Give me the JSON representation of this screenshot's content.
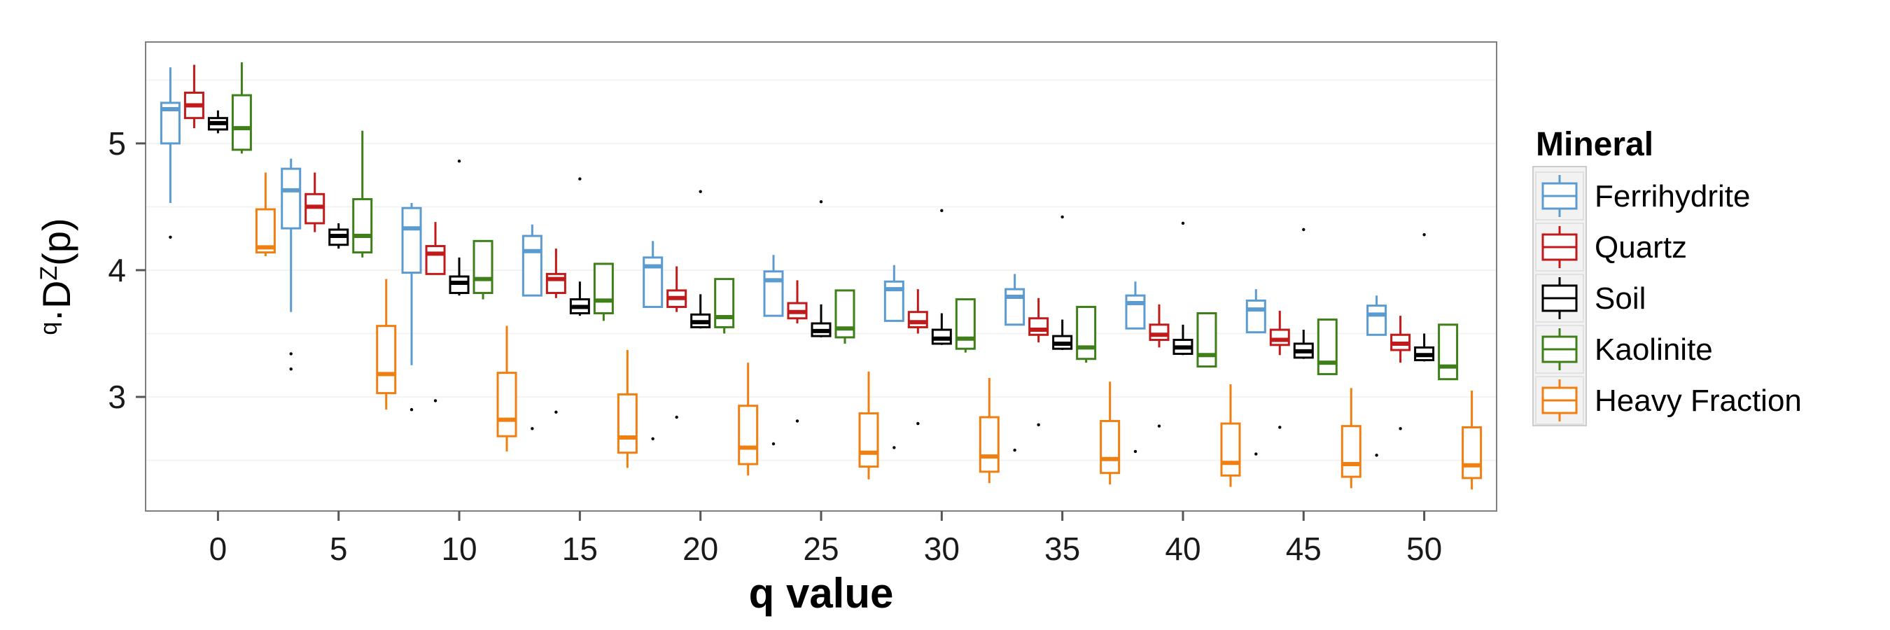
{
  "chart_data": {
    "type": "boxplot",
    "xlabel": "q value",
    "ylabel_parts": {
      "pre_sup": "q",
      "pre": "·D",
      "sup": "Z",
      "post": "(p)"
    },
    "x_ticks": [
      0,
      5,
      10,
      15,
      20,
      25,
      30,
      35,
      40,
      45,
      50
    ],
    "y_ticks": [
      3,
      4,
      5
    ],
    "ylim": [
      2.1,
      5.8
    ],
    "grid": true,
    "legend": {
      "title": "Mineral",
      "position": "right"
    },
    "series": [
      {
        "name": "Ferrihydrite",
        "color": "#5b9bd0",
        "boxes": [
          {
            "q": 0,
            "whisker_low": 4.53,
            "q1": 5.0,
            "median": 5.27,
            "q3": 5.32,
            "whisker_high": 5.6,
            "outliers": [
              4.26
            ]
          },
          {
            "q": 5,
            "whisker_low": 3.67,
            "q1": 4.33,
            "median": 4.63,
            "q3": 4.8,
            "whisker_high": 4.88,
            "outliers": [
              3.34,
              3.22
            ]
          },
          {
            "q": 10,
            "whisker_low": 3.25,
            "q1": 3.98,
            "median": 4.33,
            "q3": 4.49,
            "whisker_high": 4.53,
            "outliers": [
              2.9
            ]
          },
          {
            "q": 15,
            "whisker_low": 3.8,
            "q1": 3.8,
            "median": 4.15,
            "q3": 4.27,
            "whisker_high": 4.36,
            "outliers": [
              2.75
            ]
          },
          {
            "q": 20,
            "whisker_low": 3.71,
            "q1": 3.71,
            "median": 4.03,
            "q3": 4.1,
            "whisker_high": 4.23,
            "outliers": [
              2.67
            ]
          },
          {
            "q": 25,
            "whisker_low": 3.64,
            "q1": 3.64,
            "median": 3.92,
            "q3": 3.99,
            "whisker_high": 4.12,
            "outliers": [
              2.63
            ]
          },
          {
            "q": 30,
            "whisker_low": 3.6,
            "q1": 3.6,
            "median": 3.85,
            "q3": 3.91,
            "whisker_high": 4.04,
            "outliers": [
              2.6
            ]
          },
          {
            "q": 35,
            "whisker_low": 3.57,
            "q1": 3.57,
            "median": 3.79,
            "q3": 3.85,
            "whisker_high": 3.97,
            "outliers": [
              2.58
            ]
          },
          {
            "q": 40,
            "whisker_low": 3.54,
            "q1": 3.54,
            "median": 3.74,
            "q3": 3.8,
            "whisker_high": 3.91,
            "outliers": [
              2.57
            ]
          },
          {
            "q": 45,
            "whisker_low": 3.51,
            "q1": 3.51,
            "median": 3.69,
            "q3": 3.76,
            "whisker_high": 3.85,
            "outliers": [
              2.55
            ]
          },
          {
            "q": 50,
            "whisker_low": 3.49,
            "q1": 3.49,
            "median": 3.65,
            "q3": 3.72,
            "whisker_high": 3.8,
            "outliers": [
              2.54
            ]
          }
        ]
      },
      {
        "name": "Quartz",
        "color": "#c01a1a",
        "boxes": [
          {
            "q": 0,
            "whisker_low": 5.12,
            "q1": 5.2,
            "median": 5.3,
            "q3": 5.4,
            "whisker_high": 5.62,
            "outliers": []
          },
          {
            "q": 5,
            "whisker_low": 4.3,
            "q1": 4.37,
            "median": 4.5,
            "q3": 4.6,
            "whisker_high": 4.77,
            "outliers": []
          },
          {
            "q": 10,
            "whisker_low": 3.97,
            "q1": 3.97,
            "median": 4.13,
            "q3": 4.19,
            "whisker_high": 4.38,
            "outliers": [
              2.97
            ]
          },
          {
            "q": 15,
            "whisker_low": 3.78,
            "q1": 3.82,
            "median": 3.93,
            "q3": 3.97,
            "whisker_high": 4.17,
            "outliers": [
              2.88
            ]
          },
          {
            "q": 20,
            "whisker_low": 3.67,
            "q1": 3.71,
            "median": 3.78,
            "q3": 3.84,
            "whisker_high": 4.03,
            "outliers": [
              2.84
            ]
          },
          {
            "q": 25,
            "whisker_low": 3.58,
            "q1": 3.62,
            "median": 3.67,
            "q3": 3.74,
            "whisker_high": 3.92,
            "outliers": [
              2.81
            ]
          },
          {
            "q": 30,
            "whisker_low": 3.5,
            "q1": 3.55,
            "median": 3.59,
            "q3": 3.67,
            "whisker_high": 3.85,
            "outliers": [
              2.79
            ]
          },
          {
            "q": 35,
            "whisker_low": 3.43,
            "q1": 3.49,
            "median": 3.53,
            "q3": 3.62,
            "whisker_high": 3.78,
            "outliers": [
              2.78
            ]
          },
          {
            "q": 40,
            "whisker_low": 3.39,
            "q1": 3.45,
            "median": 3.49,
            "q3": 3.57,
            "whisker_high": 3.73,
            "outliers": [
              2.77
            ]
          },
          {
            "q": 45,
            "whisker_low": 3.33,
            "q1": 3.41,
            "median": 3.45,
            "q3": 3.53,
            "whisker_high": 3.68,
            "outliers": [
              2.76
            ]
          },
          {
            "q": 50,
            "whisker_low": 3.27,
            "q1": 3.37,
            "median": 3.42,
            "q3": 3.49,
            "whisker_high": 3.64,
            "outliers": [
              2.75
            ]
          }
        ]
      },
      {
        "name": "Soil",
        "color": "#000000",
        "boxes": [
          {
            "q": 0,
            "whisker_low": 5.08,
            "q1": 5.11,
            "median": 5.16,
            "q3": 5.2,
            "whisker_high": 5.26,
            "outliers": []
          },
          {
            "q": 5,
            "whisker_low": 4.17,
            "q1": 4.2,
            "median": 4.27,
            "q3": 4.32,
            "whisker_high": 4.37,
            "outliers": []
          },
          {
            "q": 10,
            "whisker_low": 3.8,
            "q1": 3.82,
            "median": 3.9,
            "q3": 3.95,
            "whisker_high": 4.1,
            "outliers": [
              4.86
            ]
          },
          {
            "q": 15,
            "whisker_low": 3.64,
            "q1": 3.66,
            "median": 3.71,
            "q3": 3.77,
            "whisker_high": 3.91,
            "outliers": [
              4.72
            ]
          },
          {
            "q": 20,
            "whisker_low": 3.54,
            "q1": 3.55,
            "median": 3.59,
            "q3": 3.65,
            "whisker_high": 3.81,
            "outliers": [
              4.62
            ]
          },
          {
            "q": 25,
            "whisker_low": 3.47,
            "q1": 3.48,
            "median": 3.52,
            "q3": 3.58,
            "whisker_high": 3.73,
            "outliers": [
              4.54
            ]
          },
          {
            "q": 30,
            "whisker_low": 3.41,
            "q1": 3.42,
            "median": 3.46,
            "q3": 3.53,
            "whisker_high": 3.66,
            "outliers": [
              4.47
            ]
          },
          {
            "q": 35,
            "whisker_low": 3.37,
            "q1": 3.38,
            "median": 3.42,
            "q3": 3.48,
            "whisker_high": 3.61,
            "outliers": [
              4.42
            ]
          },
          {
            "q": 40,
            "whisker_low": 3.33,
            "q1": 3.34,
            "median": 3.39,
            "q3": 3.45,
            "whisker_high": 3.57,
            "outliers": [
              4.37
            ]
          },
          {
            "q": 45,
            "whisker_low": 3.3,
            "q1": 3.31,
            "median": 3.36,
            "q3": 3.42,
            "whisker_high": 3.53,
            "outliers": [
              4.32
            ]
          },
          {
            "q": 50,
            "whisker_low": 3.28,
            "q1": 3.29,
            "median": 3.33,
            "q3": 3.39,
            "whisker_high": 3.5,
            "outliers": [
              4.28
            ]
          }
        ]
      },
      {
        "name": "Kaolinite",
        "color": "#3f7f1a",
        "boxes": [
          {
            "q": 0,
            "whisker_low": 4.92,
            "q1": 4.95,
            "median": 5.12,
            "q3": 5.38,
            "whisker_high": 5.64,
            "outliers": []
          },
          {
            "q": 5,
            "whisker_low": 4.1,
            "q1": 4.14,
            "median": 4.27,
            "q3": 4.56,
            "whisker_high": 5.1,
            "outliers": []
          },
          {
            "q": 10,
            "whisker_low": 3.77,
            "q1": 3.82,
            "median": 3.93,
            "q3": 4.23,
            "whisker_high": 4.23,
            "outliers": []
          },
          {
            "q": 15,
            "whisker_low": 3.6,
            "q1": 3.66,
            "median": 3.76,
            "q3": 4.05,
            "whisker_high": 4.05,
            "outliers": []
          },
          {
            "q": 20,
            "whisker_low": 3.5,
            "q1": 3.55,
            "median": 3.63,
            "q3": 3.93,
            "whisker_high": 3.93,
            "outliers": []
          },
          {
            "q": 25,
            "whisker_low": 3.42,
            "q1": 3.47,
            "median": 3.54,
            "q3": 3.84,
            "whisker_high": 3.84,
            "outliers": []
          },
          {
            "q": 30,
            "whisker_low": 3.35,
            "q1": 3.38,
            "median": 3.46,
            "q3": 3.77,
            "whisker_high": 3.77,
            "outliers": []
          },
          {
            "q": 35,
            "whisker_low": 3.27,
            "q1": 3.3,
            "median": 3.39,
            "q3": 3.71,
            "whisker_high": 3.71,
            "outliers": []
          },
          {
            "q": 40,
            "whisker_low": 3.24,
            "q1": 3.24,
            "median": 3.33,
            "q3": 3.66,
            "whisker_high": 3.66,
            "outliers": []
          },
          {
            "q": 45,
            "whisker_low": 3.18,
            "q1": 3.18,
            "median": 3.27,
            "q3": 3.61,
            "whisker_high": 3.61,
            "outliers": []
          },
          {
            "q": 50,
            "whisker_low": 3.14,
            "q1": 3.14,
            "median": 3.24,
            "q3": 3.57,
            "whisker_high": 3.57,
            "outliers": []
          }
        ]
      },
      {
        "name": "Heavy Fraction",
        "color": "#f07f12",
        "boxes": [
          {
            "q": 0,
            "whisker_low": 4.11,
            "q1": 4.14,
            "median": 4.18,
            "q3": 4.48,
            "whisker_high": 4.77,
            "outliers": []
          },
          {
            "q": 5,
            "whisker_low": 2.9,
            "q1": 3.03,
            "median": 3.18,
            "q3": 3.56,
            "whisker_high": 3.93,
            "outliers": []
          },
          {
            "q": 10,
            "whisker_low": 2.57,
            "q1": 2.69,
            "median": 2.82,
            "q3": 3.19,
            "whisker_high": 3.56,
            "outliers": []
          },
          {
            "q": 15,
            "whisker_low": 2.44,
            "q1": 2.56,
            "median": 2.68,
            "q3": 3.02,
            "whisker_high": 3.37,
            "outliers": []
          },
          {
            "q": 20,
            "whisker_low": 2.38,
            "q1": 2.47,
            "median": 2.6,
            "q3": 2.93,
            "whisker_high": 3.27,
            "outliers": []
          },
          {
            "q": 25,
            "whisker_low": 2.35,
            "q1": 2.45,
            "median": 2.56,
            "q3": 2.87,
            "whisker_high": 3.2,
            "outliers": []
          },
          {
            "q": 30,
            "whisker_low": 2.32,
            "q1": 2.41,
            "median": 2.53,
            "q3": 2.84,
            "whisker_high": 3.15,
            "outliers": []
          },
          {
            "q": 35,
            "whisker_low": 2.31,
            "q1": 2.4,
            "median": 2.51,
            "q3": 2.81,
            "whisker_high": 3.12,
            "outliers": []
          },
          {
            "q": 40,
            "whisker_low": 2.29,
            "q1": 2.38,
            "median": 2.48,
            "q3": 2.79,
            "whisker_high": 3.1,
            "outliers": []
          },
          {
            "q": 45,
            "whisker_low": 2.28,
            "q1": 2.37,
            "median": 2.47,
            "q3": 2.77,
            "whisker_high": 3.07,
            "outliers": []
          },
          {
            "q": 50,
            "whisker_low": 2.27,
            "q1": 2.36,
            "median": 2.46,
            "q3": 2.76,
            "whisker_high": 3.05,
            "outliers": []
          }
        ]
      }
    ]
  }
}
